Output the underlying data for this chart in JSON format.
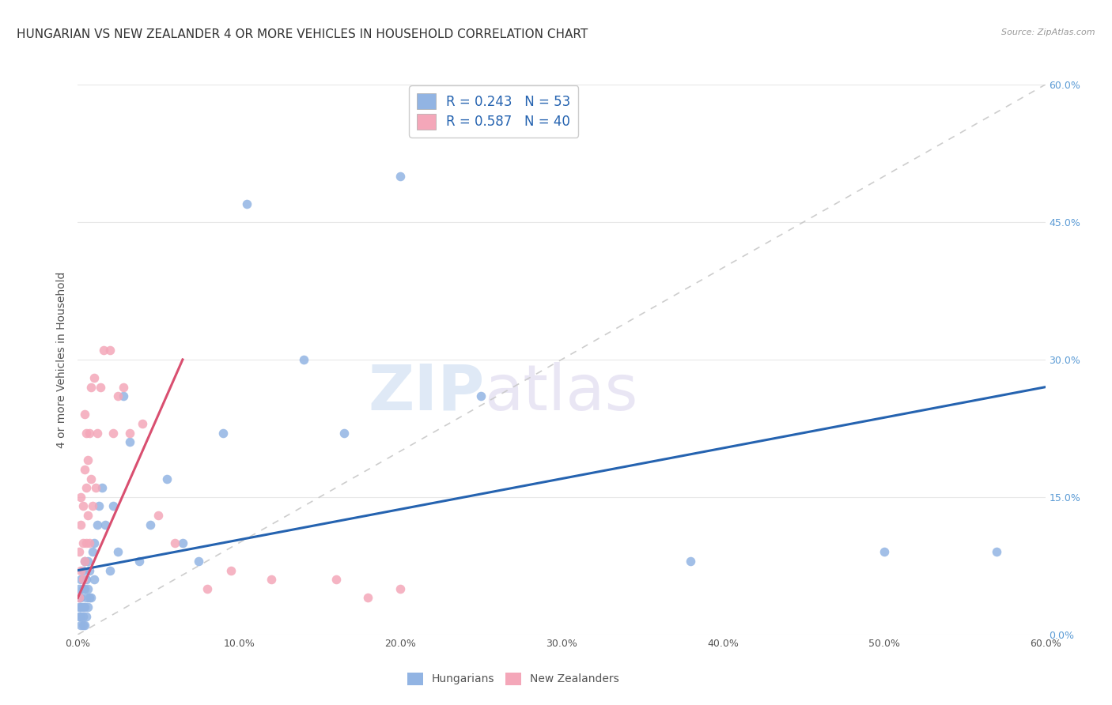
{
  "title": "HUNGARIAN VS NEW ZEALANDER 4 OR MORE VEHICLES IN HOUSEHOLD CORRELATION CHART",
  "source": "Source: ZipAtlas.com",
  "ylabel": "4 or more Vehicles in Household",
  "xlim": [
    0.0,
    0.6
  ],
  "ylim": [
    0.0,
    0.6
  ],
  "xticks": [
    0.0,
    0.1,
    0.2,
    0.3,
    0.4,
    0.5,
    0.6
  ],
  "yticks": [
    0.0,
    0.15,
    0.3,
    0.45,
    0.6
  ],
  "hungarian_color": "#92b4e3",
  "nz_color": "#f4a7b9",
  "hungarian_line_color": "#2563b0",
  "nz_line_color": "#d94f70",
  "ref_line_color": "#c8c8c8",
  "background_color": "#ffffff",
  "grid_color": "#e8e8e8",
  "legend_hungarians": "Hungarians",
  "legend_nz": "New Zealanders",
  "watermark_zip": "ZIP",
  "watermark_atlas": "atlas",
  "title_fontsize": 11,
  "axis_fontsize": 10,
  "tick_fontsize": 9,
  "hungarian_x": [
    0.001,
    0.001,
    0.001,
    0.001,
    0.002,
    0.002,
    0.002,
    0.002,
    0.002,
    0.003,
    0.003,
    0.003,
    0.003,
    0.003,
    0.004,
    0.004,
    0.004,
    0.004,
    0.005,
    0.005,
    0.005,
    0.006,
    0.006,
    0.006,
    0.007,
    0.007,
    0.008,
    0.009,
    0.01,
    0.01,
    0.012,
    0.013,
    0.015,
    0.017,
    0.02,
    0.022,
    0.025,
    0.028,
    0.032,
    0.038,
    0.045,
    0.055,
    0.065,
    0.075,
    0.09,
    0.105,
    0.14,
    0.165,
    0.2,
    0.25,
    0.38,
    0.5,
    0.57
  ],
  "hungarian_y": [
    0.02,
    0.03,
    0.04,
    0.05,
    0.01,
    0.02,
    0.03,
    0.04,
    0.06,
    0.01,
    0.02,
    0.03,
    0.05,
    0.07,
    0.01,
    0.03,
    0.05,
    0.08,
    0.02,
    0.04,
    0.06,
    0.03,
    0.05,
    0.08,
    0.04,
    0.07,
    0.04,
    0.09,
    0.06,
    0.1,
    0.12,
    0.14,
    0.16,
    0.12,
    0.07,
    0.14,
    0.09,
    0.26,
    0.21,
    0.08,
    0.12,
    0.17,
    0.1,
    0.08,
    0.22,
    0.47,
    0.3,
    0.22,
    0.5,
    0.26,
    0.08,
    0.09,
    0.09
  ],
  "nz_x": [
    0.001,
    0.001,
    0.002,
    0.002,
    0.002,
    0.003,
    0.003,
    0.003,
    0.004,
    0.004,
    0.004,
    0.005,
    0.005,
    0.005,
    0.006,
    0.006,
    0.007,
    0.007,
    0.008,
    0.008,
    0.009,
    0.01,
    0.011,
    0.012,
    0.014,
    0.016,
    0.02,
    0.022,
    0.025,
    0.028,
    0.032,
    0.04,
    0.05,
    0.06,
    0.08,
    0.095,
    0.12,
    0.16,
    0.18,
    0.2
  ],
  "nz_y": [
    0.04,
    0.09,
    0.07,
    0.12,
    0.15,
    0.06,
    0.1,
    0.14,
    0.08,
    0.18,
    0.24,
    0.1,
    0.16,
    0.22,
    0.13,
    0.19,
    0.1,
    0.22,
    0.17,
    0.27,
    0.14,
    0.28,
    0.16,
    0.22,
    0.27,
    0.31,
    0.31,
    0.22,
    0.26,
    0.27,
    0.22,
    0.23,
    0.13,
    0.1,
    0.05,
    0.07,
    0.06,
    0.06,
    0.04,
    0.05
  ],
  "hungarian_line_x": [
    0.0,
    0.6
  ],
  "hungarian_line_y": [
    0.07,
    0.27
  ],
  "nz_line_x": [
    0.0,
    0.065
  ],
  "nz_line_y": [
    0.04,
    0.3
  ]
}
